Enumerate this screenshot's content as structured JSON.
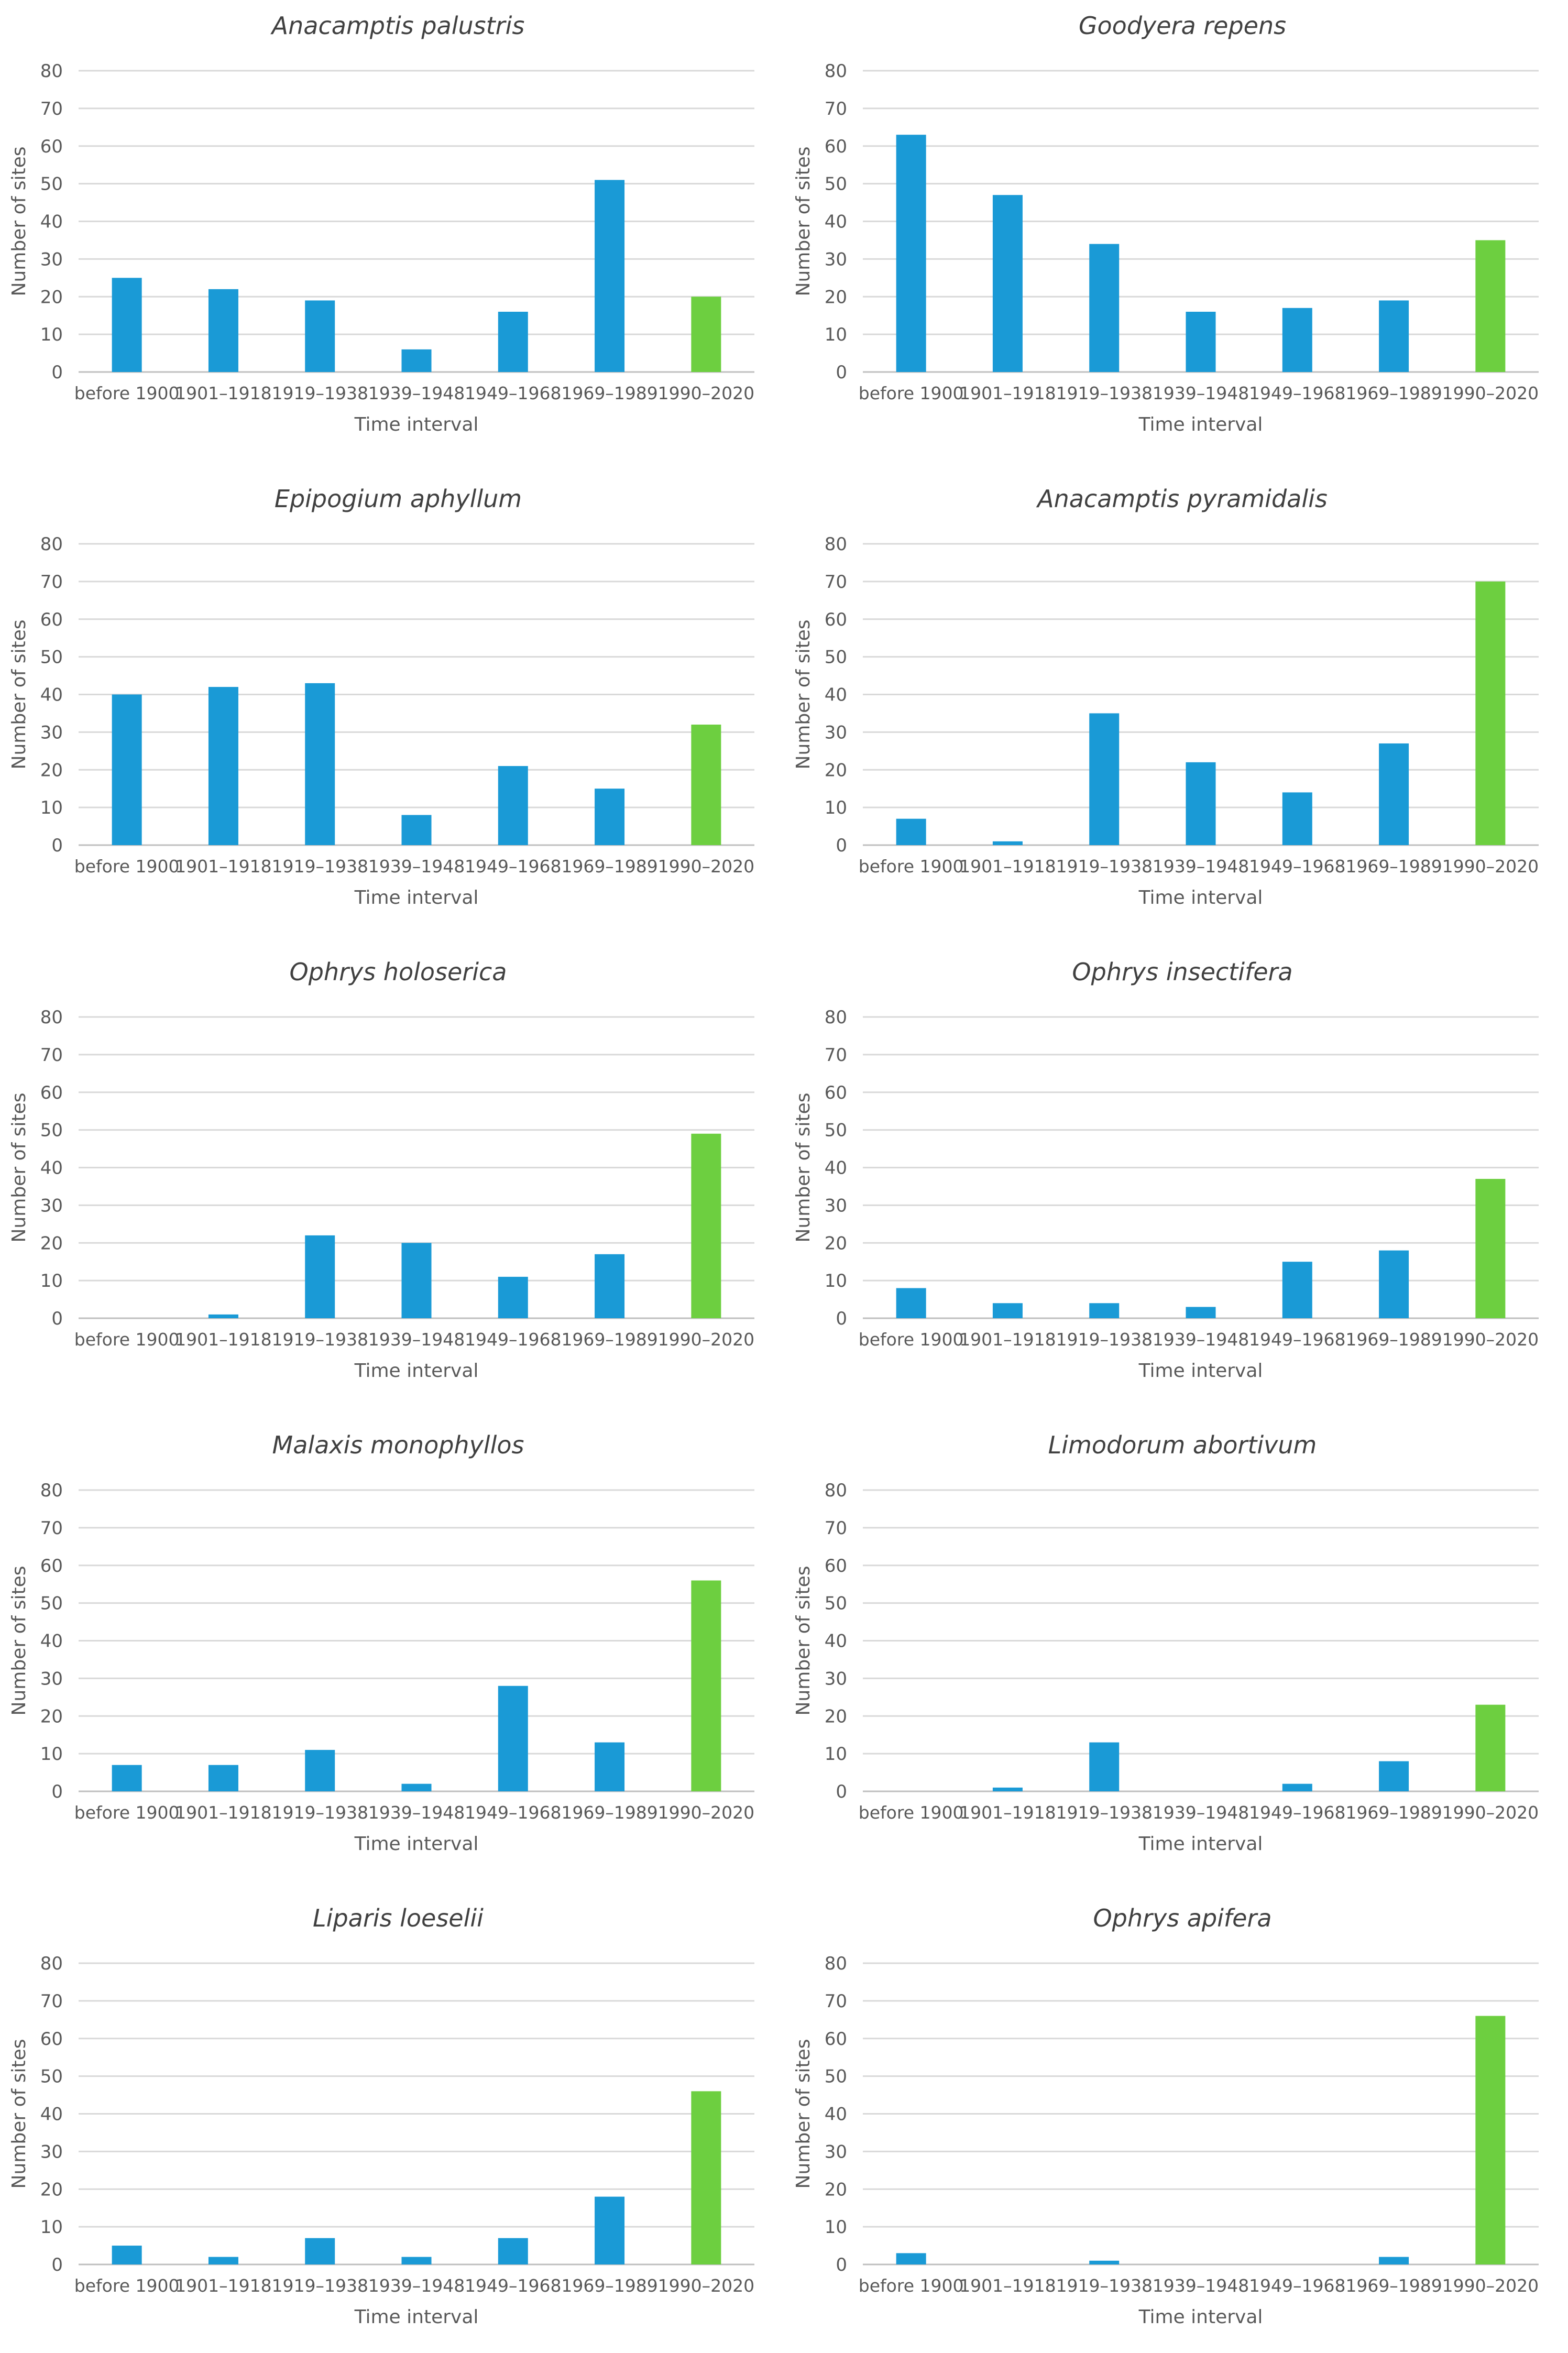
{
  "colors": {
    "historical_bar": "#1a9ad6",
    "recent_bar": "#6dcf40",
    "gridline": "#d9d9d9",
    "text": "#595959",
    "title": "#404040"
  },
  "chart_data": [
    {
      "type": "bar",
      "title": "Anacamptis palustris",
      "xlabel": "Time interval",
      "ylabel": "Number of sites",
      "ylim": [
        0,
        80
      ],
      "yticks": [
        "0",
        "10",
        "20",
        "30",
        "40",
        "50",
        "60",
        "70",
        "80"
      ],
      "categories": [
        "before 1900",
        "1901–1918",
        "1919–1938",
        "1939–1948",
        "1949–1968",
        "1969–1989",
        "1990–2020"
      ],
      "values": [
        25,
        22,
        19,
        6,
        16,
        51,
        20
      ]
    },
    {
      "type": "bar",
      "title": "Goodyera repens",
      "xlabel": "Time interval",
      "ylabel": "Number of sites",
      "ylim": [
        0,
        80
      ],
      "yticks": [
        "0",
        "10",
        "20",
        "30",
        "40",
        "50",
        "60",
        "70",
        "80"
      ],
      "categories": [
        "before 1900",
        "1901–1918",
        "1919–1938",
        "1939–1948",
        "1949–1968",
        "1969–1989",
        "1990–2020"
      ],
      "values": [
        63,
        47,
        34,
        16,
        17,
        19,
        35
      ]
    },
    {
      "type": "bar",
      "title": "Epipogium aphyllum",
      "xlabel": "Time interval",
      "ylabel": "Number of sites",
      "ylim": [
        0,
        80
      ],
      "yticks": [
        "0",
        "10",
        "20",
        "30",
        "40",
        "50",
        "60",
        "70",
        "80"
      ],
      "categories": [
        "before 1900",
        "1901–1918",
        "1919–1938",
        "1939–1948",
        "1949–1968",
        "1969–1989",
        "1990–2020"
      ],
      "values": [
        40,
        42,
        43,
        8,
        21,
        15,
        32
      ]
    },
    {
      "type": "bar",
      "title": "Anacamptis pyramidalis",
      "xlabel": "Time interval",
      "ylabel": "Number of sites",
      "ylim": [
        0,
        80
      ],
      "yticks": [
        "0",
        "10",
        "20",
        "30",
        "40",
        "50",
        "60",
        "70",
        "80"
      ],
      "categories": [
        "before 1900",
        "1901–1918",
        "1919–1938",
        "1939–1948",
        "1949–1968",
        "1969–1989",
        "1990–2020"
      ],
      "values": [
        7,
        1,
        35,
        22,
        14,
        27,
        70
      ]
    },
    {
      "type": "bar",
      "title": "Ophrys holoserica",
      "xlabel": "Time interval",
      "ylabel": "Number of sites",
      "ylim": [
        0,
        80
      ],
      "yticks": [
        "0",
        "10",
        "20",
        "30",
        "40",
        "50",
        "60",
        "70",
        "80"
      ],
      "categories": [
        "before 1900",
        "1901–1918",
        "1919–1938",
        "1939–1948",
        "1949–1968",
        "1969–1989",
        "1990–2020"
      ],
      "values": [
        0,
        1,
        22,
        20,
        11,
        17,
        49
      ]
    },
    {
      "type": "bar",
      "title": "Ophrys insectifera",
      "xlabel": "Time interval",
      "ylabel": "Number of sites",
      "ylim": [
        0,
        80
      ],
      "yticks": [
        "0",
        "10",
        "20",
        "30",
        "40",
        "50",
        "60",
        "70",
        "80"
      ],
      "categories": [
        "before 1900",
        "1901–1918",
        "1919–1938",
        "1939–1948",
        "1949–1968",
        "1969–1989",
        "1990–2020"
      ],
      "values": [
        8,
        4,
        4,
        3,
        15,
        18,
        37
      ]
    },
    {
      "type": "bar",
      "title": "Malaxis monophyllos",
      "xlabel": "Time interval",
      "ylabel": "Number of sites",
      "ylim": [
        0,
        80
      ],
      "yticks": [
        "0",
        "10",
        "20",
        "30",
        "40",
        "50",
        "60",
        "70",
        "80"
      ],
      "categories": [
        "before 1900",
        "1901–1918",
        "1919–1938",
        "1939–1948",
        "1949–1968",
        "1969–1989",
        "1990–2020"
      ],
      "values": [
        7,
        7,
        11,
        2,
        28,
        13,
        56
      ]
    },
    {
      "type": "bar",
      "title": "Limodorum abortivum",
      "xlabel": "Time interval",
      "ylabel": "Number of sites",
      "ylim": [
        0,
        80
      ],
      "yticks": [
        "0",
        "10",
        "20",
        "30",
        "40",
        "50",
        "60",
        "70",
        "80"
      ],
      "categories": [
        "before 1900",
        "1901–1918",
        "1919–1938",
        "1939–1948",
        "1949–1968",
        "1969–1989",
        "1990–2020"
      ],
      "values": [
        0,
        1,
        13,
        0,
        2,
        8,
        23
      ]
    },
    {
      "type": "bar",
      "title": "Liparis loeselii",
      "xlabel": "Time interval",
      "ylabel": "Number of sites",
      "ylim": [
        0,
        80
      ],
      "yticks": [
        "0",
        "10",
        "20",
        "30",
        "40",
        "50",
        "60",
        "70",
        "80"
      ],
      "categories": [
        "before 1900",
        "1901–1918",
        "1919–1938",
        "1939–1948",
        "1949–1968",
        "1969–1989",
        "1990–2020"
      ],
      "values": [
        5,
        2,
        7,
        2,
        7,
        18,
        46
      ]
    },
    {
      "type": "bar",
      "title": "Ophrys apifera",
      "xlabel": "Time interval",
      "ylabel": "Number of sites",
      "ylim": [
        0,
        80
      ],
      "yticks": [
        "0",
        "10",
        "20",
        "30",
        "40",
        "50",
        "60",
        "70",
        "80"
      ],
      "categories": [
        "before 1900",
        "1901–1918",
        "1919–1938",
        "1939–1948",
        "1949–1968",
        "1969–1989",
        "1990–2020"
      ],
      "values": [
        3,
        0,
        1,
        0,
        0,
        2,
        66
      ]
    }
  ]
}
